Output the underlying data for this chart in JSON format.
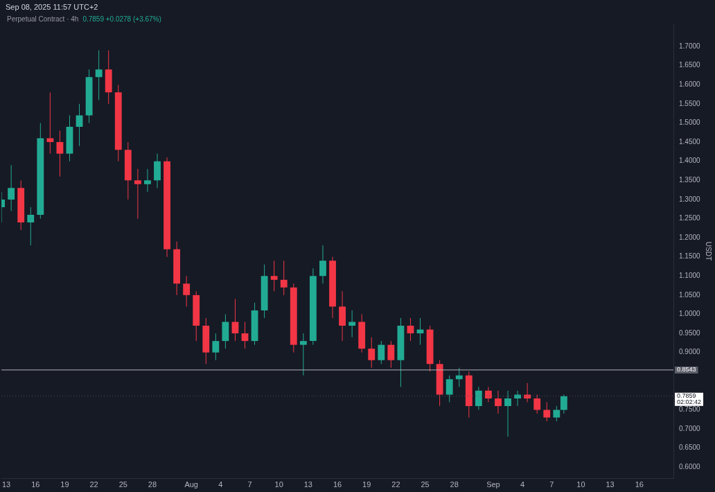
{
  "chart_data": {
    "type": "candlestick",
    "title": "Perpetual Contract · 4h",
    "subtitle": "0.7859 +0.0278 (+3.67%)",
    "ylabel": "USDT",
    "annotations": [
      "Sep 08, 2025 11:57 UTC+2",
      "02:02:42"
    ],
    "x": [
      "2025-07-12T12:00",
      "2025-07-13T12:00",
      "2025-07-14T12:00",
      "2025-07-15T12:00",
      "2025-07-16T12:00",
      "2025-07-17T12:00",
      "2025-07-18T12:00",
      "2025-07-19T12:00",
      "2025-07-20T12:00",
      "2025-07-21T12:00",
      "2025-07-22T12:00",
      "2025-07-23T12:00",
      "2025-07-24T12:00",
      "2025-07-25T12:00",
      "2025-07-26T12:00",
      "2025-07-27T12:00",
      "2025-07-28T12:00",
      "2025-07-29T12:00",
      "2025-07-30T12:00",
      "2025-07-31T12:00",
      "2025-08-01T12:00",
      "2025-08-02T12:00",
      "2025-08-03T12:00",
      "2025-08-04T12:00",
      "2025-08-05T12:00",
      "2025-08-06T12:00",
      "2025-08-07T12:00",
      "2025-08-08T12:00",
      "2025-08-09T12:00",
      "2025-08-10T12:00",
      "2025-08-11T12:00",
      "2025-08-12T12:00",
      "2025-08-13T12:00",
      "2025-08-14T12:00",
      "2025-08-15T12:00",
      "2025-08-16T12:00",
      "2025-08-17T12:00",
      "2025-08-18T12:00",
      "2025-08-19T12:00",
      "2025-08-20T12:00",
      "2025-08-21T12:00",
      "2025-08-22T12:00",
      "2025-08-23T12:00",
      "2025-08-24T12:00",
      "2025-08-25T12:00",
      "2025-08-26T12:00",
      "2025-08-27T12:00",
      "2025-08-28T12:00",
      "2025-08-29T12:00",
      "2025-08-30T12:00",
      "2025-08-31T12:00",
      "2025-09-01T12:00",
      "2025-09-02T12:00",
      "2025-09-03T12:00",
      "2025-09-04T12:00",
      "2025-09-05T12:00",
      "2025-09-06T12:00",
      "2025-09-07T12:00",
      "2025-09-08T06:00"
    ],
    "ohlc": [
      [
        1.28,
        1.32,
        1.24,
        1.3
      ],
      [
        1.3,
        1.39,
        1.27,
        1.33
      ],
      [
        1.33,
        1.35,
        1.22,
        1.24
      ],
      [
        1.24,
        1.28,
        1.18,
        1.26
      ],
      [
        1.26,
        1.5,
        1.25,
        1.46
      ],
      [
        1.46,
        1.58,
        1.42,
        1.45
      ],
      [
        1.45,
        1.48,
        1.36,
        1.42
      ],
      [
        1.42,
        1.52,
        1.4,
        1.49
      ],
      [
        1.49,
        1.55,
        1.44,
        1.52
      ],
      [
        1.52,
        1.64,
        1.5,
        1.62
      ],
      [
        1.62,
        1.69,
        1.56,
        1.64
      ],
      [
        1.64,
        1.69,
        1.55,
        1.58
      ],
      [
        1.58,
        1.6,
        1.4,
        1.43
      ],
      [
        1.43,
        1.45,
        1.3,
        1.35
      ],
      [
        1.35,
        1.38,
        1.25,
        1.34
      ],
      [
        1.34,
        1.38,
        1.32,
        1.35
      ],
      [
        1.35,
        1.42,
        1.33,
        1.4
      ],
      [
        1.4,
        1.41,
        1.15,
        1.17
      ],
      [
        1.17,
        1.19,
        1.05,
        1.08
      ],
      [
        1.08,
        1.1,
        1.02,
        1.05
      ],
      [
        1.05,
        1.06,
        0.93,
        0.97
      ],
      [
        0.97,
        0.99,
        0.87,
        0.9
      ],
      [
        0.9,
        0.95,
        0.88,
        0.93
      ],
      [
        0.93,
        1.0,
        0.91,
        0.98
      ],
      [
        0.98,
        1.04,
        0.93,
        0.95
      ],
      [
        0.95,
        0.98,
        0.91,
        0.93
      ],
      [
        0.93,
        1.03,
        0.92,
        1.01
      ],
      [
        1.01,
        1.13,
        0.99,
        1.1
      ],
      [
        1.1,
        1.14,
        1.06,
        1.09
      ],
      [
        1.09,
        1.14,
        1.05,
        1.07
      ],
      [
        1.07,
        1.08,
        0.9,
        0.92
      ],
      [
        0.92,
        0.95,
        0.84,
        0.93
      ],
      [
        0.93,
        1.12,
        0.92,
        1.1
      ],
      [
        1.1,
        1.18,
        1.08,
        1.14
      ],
      [
        1.14,
        1.15,
        0.99,
        1.02
      ],
      [
        1.02,
        1.06,
        0.93,
        0.97
      ],
      [
        0.97,
        1.01,
        0.94,
        0.98
      ],
      [
        0.98,
        1.0,
        0.9,
        0.91
      ],
      [
        0.91,
        0.94,
        0.86,
        0.88
      ],
      [
        0.88,
        0.93,
        0.87,
        0.92
      ],
      [
        0.92,
        0.93,
        0.86,
        0.88
      ],
      [
        0.88,
        0.99,
        0.81,
        0.97
      ],
      [
        0.97,
        0.99,
        0.93,
        0.95
      ],
      [
        0.95,
        0.99,
        0.92,
        0.96
      ],
      [
        0.96,
        0.97,
        0.85,
        0.87
      ],
      [
        0.87,
        0.88,
        0.76,
        0.79
      ],
      [
        0.79,
        0.84,
        0.77,
        0.83
      ],
      [
        0.83,
        0.86,
        0.81,
        0.84
      ],
      [
        0.84,
        0.85,
        0.73,
        0.76
      ],
      [
        0.76,
        0.81,
        0.75,
        0.8
      ],
      [
        0.8,
        0.81,
        0.77,
        0.78
      ],
      [
        0.78,
        0.8,
        0.74,
        0.76
      ],
      [
        0.76,
        0.8,
        0.68,
        0.78
      ],
      [
        0.78,
        0.8,
        0.76,
        0.79
      ],
      [
        0.79,
        0.82,
        0.77,
        0.78
      ],
      [
        0.78,
        0.79,
        0.74,
        0.75
      ],
      [
        0.75,
        0.77,
        0.72,
        0.73
      ],
      [
        0.73,
        0.76,
        0.72,
        0.75
      ],
      [
        0.75,
        0.79,
        0.74,
        0.7859
      ]
    ],
    "colors": [
      "#22ab94",
      "#22ab94",
      "#f23645",
      "#22ab94",
      "#22ab94",
      "#f23645",
      "#f23645",
      "#22ab94",
      "#22ab94",
      "#22ab94",
      "#22ab94",
      "#f23645",
      "#f23645",
      "#f23645",
      "#f23645",
      "#22ab94",
      "#22ab94",
      "#f23645",
      "#f23645",
      "#f23645",
      "#f23645",
      "#f23645",
      "#22ab94",
      "#22ab94",
      "#f23645",
      "#f23645",
      "#22ab94",
      "#22ab94",
      "#f23645",
      "#f23645",
      "#f23645",
      "#22ab94",
      "#22ab94",
      "#22ab94",
      "#f23645",
      "#f23645",
      "#22ab94",
      "#f23645",
      "#f23645",
      "#22ab94",
      "#f23645",
      "#22ab94",
      "#f23645",
      "#22ab94",
      "#f23645",
      "#f23645",
      "#22ab94",
      "#22ab94",
      "#f23645",
      "#22ab94",
      "#f23645",
      "#f23645",
      "#22ab94",
      "#22ab94",
      "#f23645",
      "#f23645",
      "#f23645",
      "#22ab94",
      "#22ab94"
    ],
    "xlim": [
      "2025-07-12T12:00",
      "2025-09-19T12:00"
    ],
    "xticks": [
      {
        "value": "2025-07-13",
        "label": "13"
      },
      {
        "value": "2025-07-16",
        "label": "16"
      },
      {
        "value": "2025-07-19",
        "label": "19"
      },
      {
        "value": "2025-07-22",
        "label": "22"
      },
      {
        "value": "2025-07-25",
        "label": "25"
      },
      {
        "value": "2025-07-28",
        "label": "28"
      },
      {
        "value": "2025-08-01",
        "label": "Aug"
      },
      {
        "value": "2025-08-04",
        "label": "4"
      },
      {
        "value": "2025-08-07",
        "label": "7"
      },
      {
        "value": "2025-08-10",
        "label": "10"
      },
      {
        "value": "2025-08-13",
        "label": "13"
      },
      {
        "value": "2025-08-16",
        "label": "16"
      },
      {
        "value": "2025-08-19",
        "label": "19"
      },
      {
        "value": "2025-08-22",
        "label": "22"
      },
      {
        "value": "2025-08-25",
        "label": "25"
      },
      {
        "value": "2025-08-28",
        "label": "28"
      },
      {
        "value": "2025-09-01",
        "label": "Sep"
      },
      {
        "value": "2025-09-04",
        "label": "4"
      },
      {
        "value": "2025-09-07",
        "label": "7"
      },
      {
        "value": "2025-09-10",
        "label": "10"
      },
      {
        "value": "2025-09-13",
        "label": "13"
      },
      {
        "value": "2025-09-16",
        "label": "16"
      }
    ],
    "ylim": [
      0.57,
      1.76
    ],
    "yticks": [
      {
        "value": 0.6,
        "label": "0.6000"
      },
      {
        "value": 0.65,
        "label": "0.6500"
      },
      {
        "value": 0.7,
        "label": "0.7000"
      },
      {
        "value": 0.75,
        "label": "0.7500"
      },
      {
        "value": 0.9,
        "label": "0.9000"
      },
      {
        "value": 0.95,
        "label": "0.9500"
      },
      {
        "value": 1.0,
        "label": "1.0000"
      },
      {
        "value": 1.05,
        "label": "1.0500"
      },
      {
        "value": 1.1,
        "label": "1.1000"
      },
      {
        "value": 1.15,
        "label": "1.1500"
      },
      {
        "value": 1.2,
        "label": "1.2000"
      },
      {
        "value": 1.25,
        "label": "1.2500"
      },
      {
        "value": 1.3,
        "label": "1.3000"
      },
      {
        "value": 1.35,
        "label": "1.3500"
      },
      {
        "value": 1.4,
        "label": "1.4000"
      },
      {
        "value": 1.45,
        "label": "1.4500"
      },
      {
        "value": 1.5,
        "label": "1.5000"
      },
      {
        "value": 1.55,
        "label": "1.5500"
      },
      {
        "value": 1.6,
        "label": "1.6000"
      },
      {
        "value": 1.65,
        "label": "1.6500"
      },
      {
        "value": 1.7,
        "label": "1.7000"
      }
    ],
    "ref_lines": [
      {
        "axis": "y",
        "value": 0.8543,
        "label": "0.8543",
        "color": "#b2b5be",
        "line_style": "solid"
      },
      {
        "axis": "y",
        "value": 0.7859,
        "label": "0.7859",
        "color": "#50535e",
        "line_style": "dotted"
      }
    ]
  }
}
